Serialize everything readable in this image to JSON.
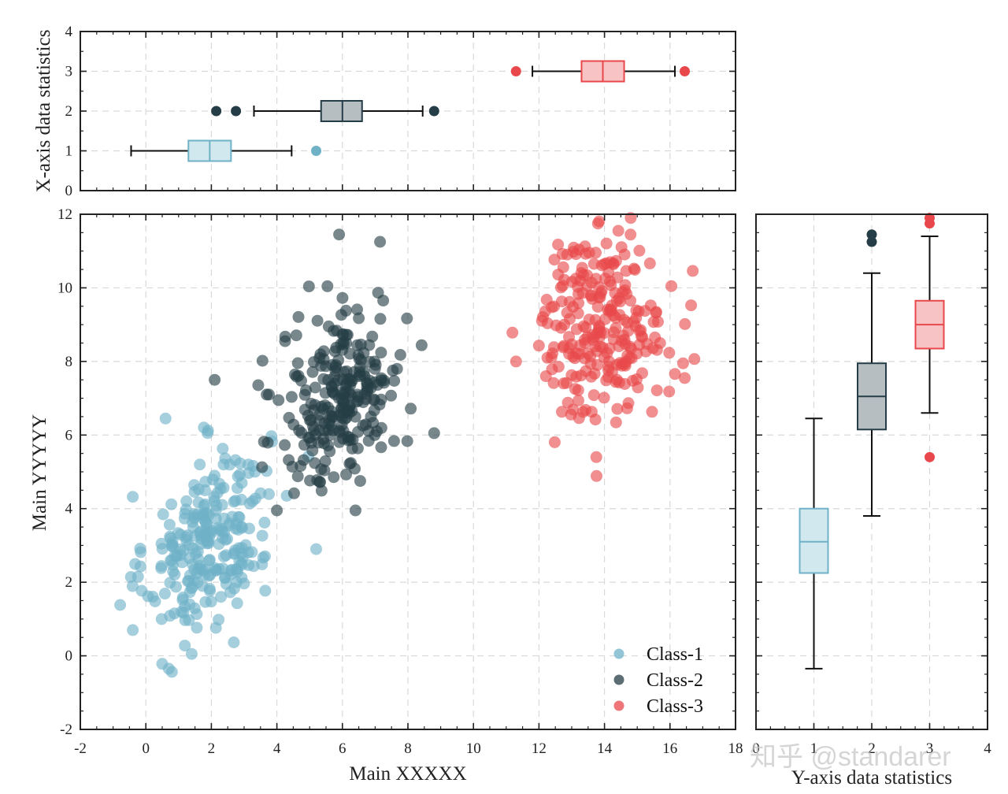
{
  "chart_data": [
    {
      "id": "main",
      "type": "scatter",
      "xlabel": "Main XXXXX",
      "ylabel": "Main YYYYY",
      "xlim": [
        -2,
        18
      ],
      "ylim": [
        -2,
        12
      ],
      "xticks": [
        -2,
        0,
        2,
        4,
        6,
        8,
        10,
        12,
        14,
        16,
        18
      ],
      "yticks": [
        -2,
        0,
        2,
        4,
        6,
        8,
        10,
        12
      ],
      "grid": true,
      "legend": "bottom-right",
      "series": [
        {
          "name": "Class-1",
          "color": "#6fb2c8",
          "n": 250,
          "mean": [
            1.9,
            3.1
          ],
          "std": [
            0.95,
            1.25
          ],
          "corr": 0.35,
          "extremes": [
            [
              -0.4,
              0.7
            ],
            [
              5.2,
              2.9
            ],
            [
              0.6,
              6.45
            ],
            [
              0.7,
              -0.35
            ],
            [
              4.3,
              4.35
            ],
            [
              1.4,
              0.05
            ]
          ]
        },
        {
          "name": "Class-2",
          "color": "#253d46",
          "n": 250,
          "mean": [
            6.0,
            7.1
          ],
          "std": [
            0.95,
            1.25
          ],
          "corr": 0.3,
          "extremes": [
            [
              2.1,
              7.5
            ],
            [
              8.8,
              6.05
            ],
            [
              5.9,
              11.45
            ],
            [
              7.15,
              11.25
            ],
            [
              4.0,
              3.95
            ],
            [
              6.4,
              3.95
            ]
          ]
        },
        {
          "name": "Class-3",
          "color": "#e8484b",
          "n": 250,
          "mean": [
            13.95,
            9.0
          ],
          "std": [
            0.95,
            1.25
          ],
          "corr": 0.05,
          "extremes": [
            [
              11.3,
              8.0
            ],
            [
              16.4,
              7.95
            ],
            [
              13.75,
              5.4
            ],
            [
              14.8,
              11.9
            ],
            [
              13.8,
              11.75
            ],
            [
              16.45,
              7.55
            ]
          ]
        }
      ]
    },
    {
      "id": "top-box",
      "type": "box",
      "orientation": "horizontal",
      "ylabel": "X-axis data statistics",
      "xlim": [
        -2,
        18
      ],
      "ylim": [
        0,
        4
      ],
      "yticks": [
        0,
        1,
        2,
        3,
        4
      ],
      "grid": true,
      "boxes": [
        {
          "label": "Class-1",
          "pos": 1,
          "color": "#6fb2c8",
          "fill": "#d2e8ef",
          "whisker_low": -0.45,
          "q1": 1.3,
          "median": 1.95,
          "q3": 2.6,
          "whisker_high": 4.45,
          "outliers": [
            5.2
          ]
        },
        {
          "label": "Class-2",
          "pos": 2,
          "color": "#253d46",
          "fill": "#b6bec2",
          "whisker_low": 3.3,
          "q1": 5.35,
          "median": 6.0,
          "q3": 6.6,
          "whisker_high": 8.45,
          "outliers": [
            2.15,
            2.75,
            8.8
          ]
        },
        {
          "label": "Class-3",
          "pos": 3,
          "color": "#e8484b",
          "fill": "#f7c3c4",
          "whisker_low": 11.8,
          "q1": 13.3,
          "median": 13.95,
          "q3": 14.6,
          "whisker_high": 16.15,
          "outliers": [
            11.3,
            16.45
          ]
        }
      ]
    },
    {
      "id": "right-box",
      "type": "box",
      "orientation": "vertical",
      "xlabel": "Y-axis data statistics",
      "xlim": [
        0,
        4
      ],
      "ylim": [
        -2,
        12
      ],
      "xticks": [
        0,
        1,
        2,
        3,
        4
      ],
      "grid": true,
      "boxes": [
        {
          "label": "Class-1",
          "pos": 1,
          "color": "#6fb2c8",
          "fill": "#d2e8ef",
          "whisker_low": -0.35,
          "q1": 2.25,
          "median": 3.1,
          "q3": 4.0,
          "whisker_high": 6.45,
          "outliers": []
        },
        {
          "label": "Class-2",
          "pos": 2,
          "color": "#253d46",
          "fill": "#b6bec2",
          "whisker_low": 3.8,
          "q1": 6.15,
          "median": 7.05,
          "q3": 7.95,
          "whisker_high": 10.4,
          "outliers": [
            11.25,
            11.45
          ]
        },
        {
          "label": "Class-3",
          "pos": 3,
          "color": "#e8484b",
          "fill": "#f7c3c4",
          "whisker_low": 6.6,
          "q1": 8.35,
          "median": 9.0,
          "q3": 9.65,
          "whisker_high": 11.4,
          "outliers": [
            5.4,
            11.75,
            11.9
          ]
        }
      ]
    }
  ],
  "watermark": "知乎 @standarer"
}
